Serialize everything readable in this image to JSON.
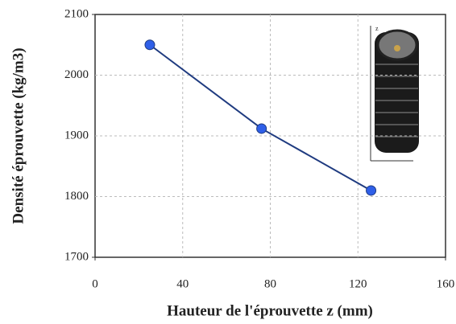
{
  "chart_data": {
    "type": "line",
    "xlabel": "Hauteur de l'éprouvette z (mm)",
    "ylabel": "Densité éprouvette (kg/m3)",
    "x": [
      25,
      76,
      126
    ],
    "series": [
      {
        "name": null,
        "color": "#1f3b80",
        "marker_color": "#2f5fe8",
        "values": [
          2050,
          1912,
          1810
        ]
      }
    ],
    "xlim": [
      0,
      160
    ],
    "xticks": [
      0,
      40,
      80,
      120,
      160
    ],
    "ylim": [
      1700,
      2100
    ],
    "yticks": [
      1700,
      1800,
      1900,
      2000,
      2100
    ],
    "grid": true,
    "inset_label": "z"
  }
}
